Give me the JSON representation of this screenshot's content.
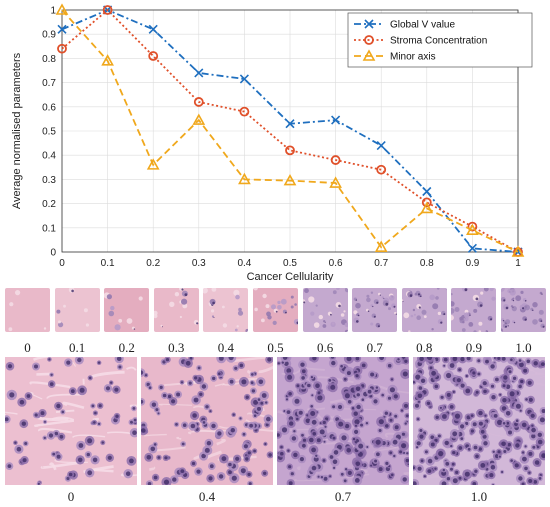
{
  "chart_data": {
    "type": "line",
    "title": "",
    "xlabel": "Cancer Cellularity",
    "ylabel": "Average normalised parameters",
    "x": [
      0,
      0.1,
      0.2,
      0.3,
      0.4,
      0.5,
      0.6,
      0.7,
      0.8,
      0.9,
      1
    ],
    "xticks": [
      "0",
      "0.1",
      "0.2",
      "0.3",
      "0.4",
      "0.5",
      "0.6",
      "0.7",
      "0.8",
      "0.9",
      "1"
    ],
    "yticks": [
      "0",
      "0.1",
      "0.2",
      "0.3",
      "0.4",
      "0.5",
      "0.6",
      "0.7",
      "0.8",
      "0.9",
      "1"
    ],
    "xlim": [
      0,
      1
    ],
    "ylim": [
      0,
      1
    ],
    "grid": true,
    "legend_position": "top-right",
    "series": [
      {
        "name": "Global V value",
        "color": "#1f6fbf",
        "marker": "x",
        "dash": "dashdot",
        "values": [
          0.92,
          1.0,
          0.92,
          0.74,
          0.715,
          0.53,
          0.545,
          0.44,
          0.25,
          0.015,
          0.0
        ]
      },
      {
        "name": "Stroma Concentration",
        "color": "#e0502a",
        "marker": "circle",
        "dash": "dotted",
        "values": [
          0.84,
          1.0,
          0.81,
          0.62,
          0.58,
          0.42,
          0.38,
          0.34,
          0.205,
          0.105,
          0.0
        ]
      },
      {
        "name": "Minor axis",
        "color": "#f0a81c",
        "marker": "triangle",
        "dash": "dashed",
        "values": [
          1.0,
          0.79,
          0.36,
          0.545,
          0.3,
          0.295,
          0.285,
          0.02,
          0.18,
          0.09,
          0.0
        ]
      }
    ]
  },
  "thumbnails": {
    "labels": [
      "0",
      "0.1",
      "0.2",
      "0.3",
      "0.4",
      "0.5",
      "0.6",
      "0.7",
      "0.8",
      "0.9",
      "1.0"
    ]
  },
  "large_images": {
    "labels": [
      "0",
      "0.4",
      "0.7",
      "1.0"
    ]
  }
}
